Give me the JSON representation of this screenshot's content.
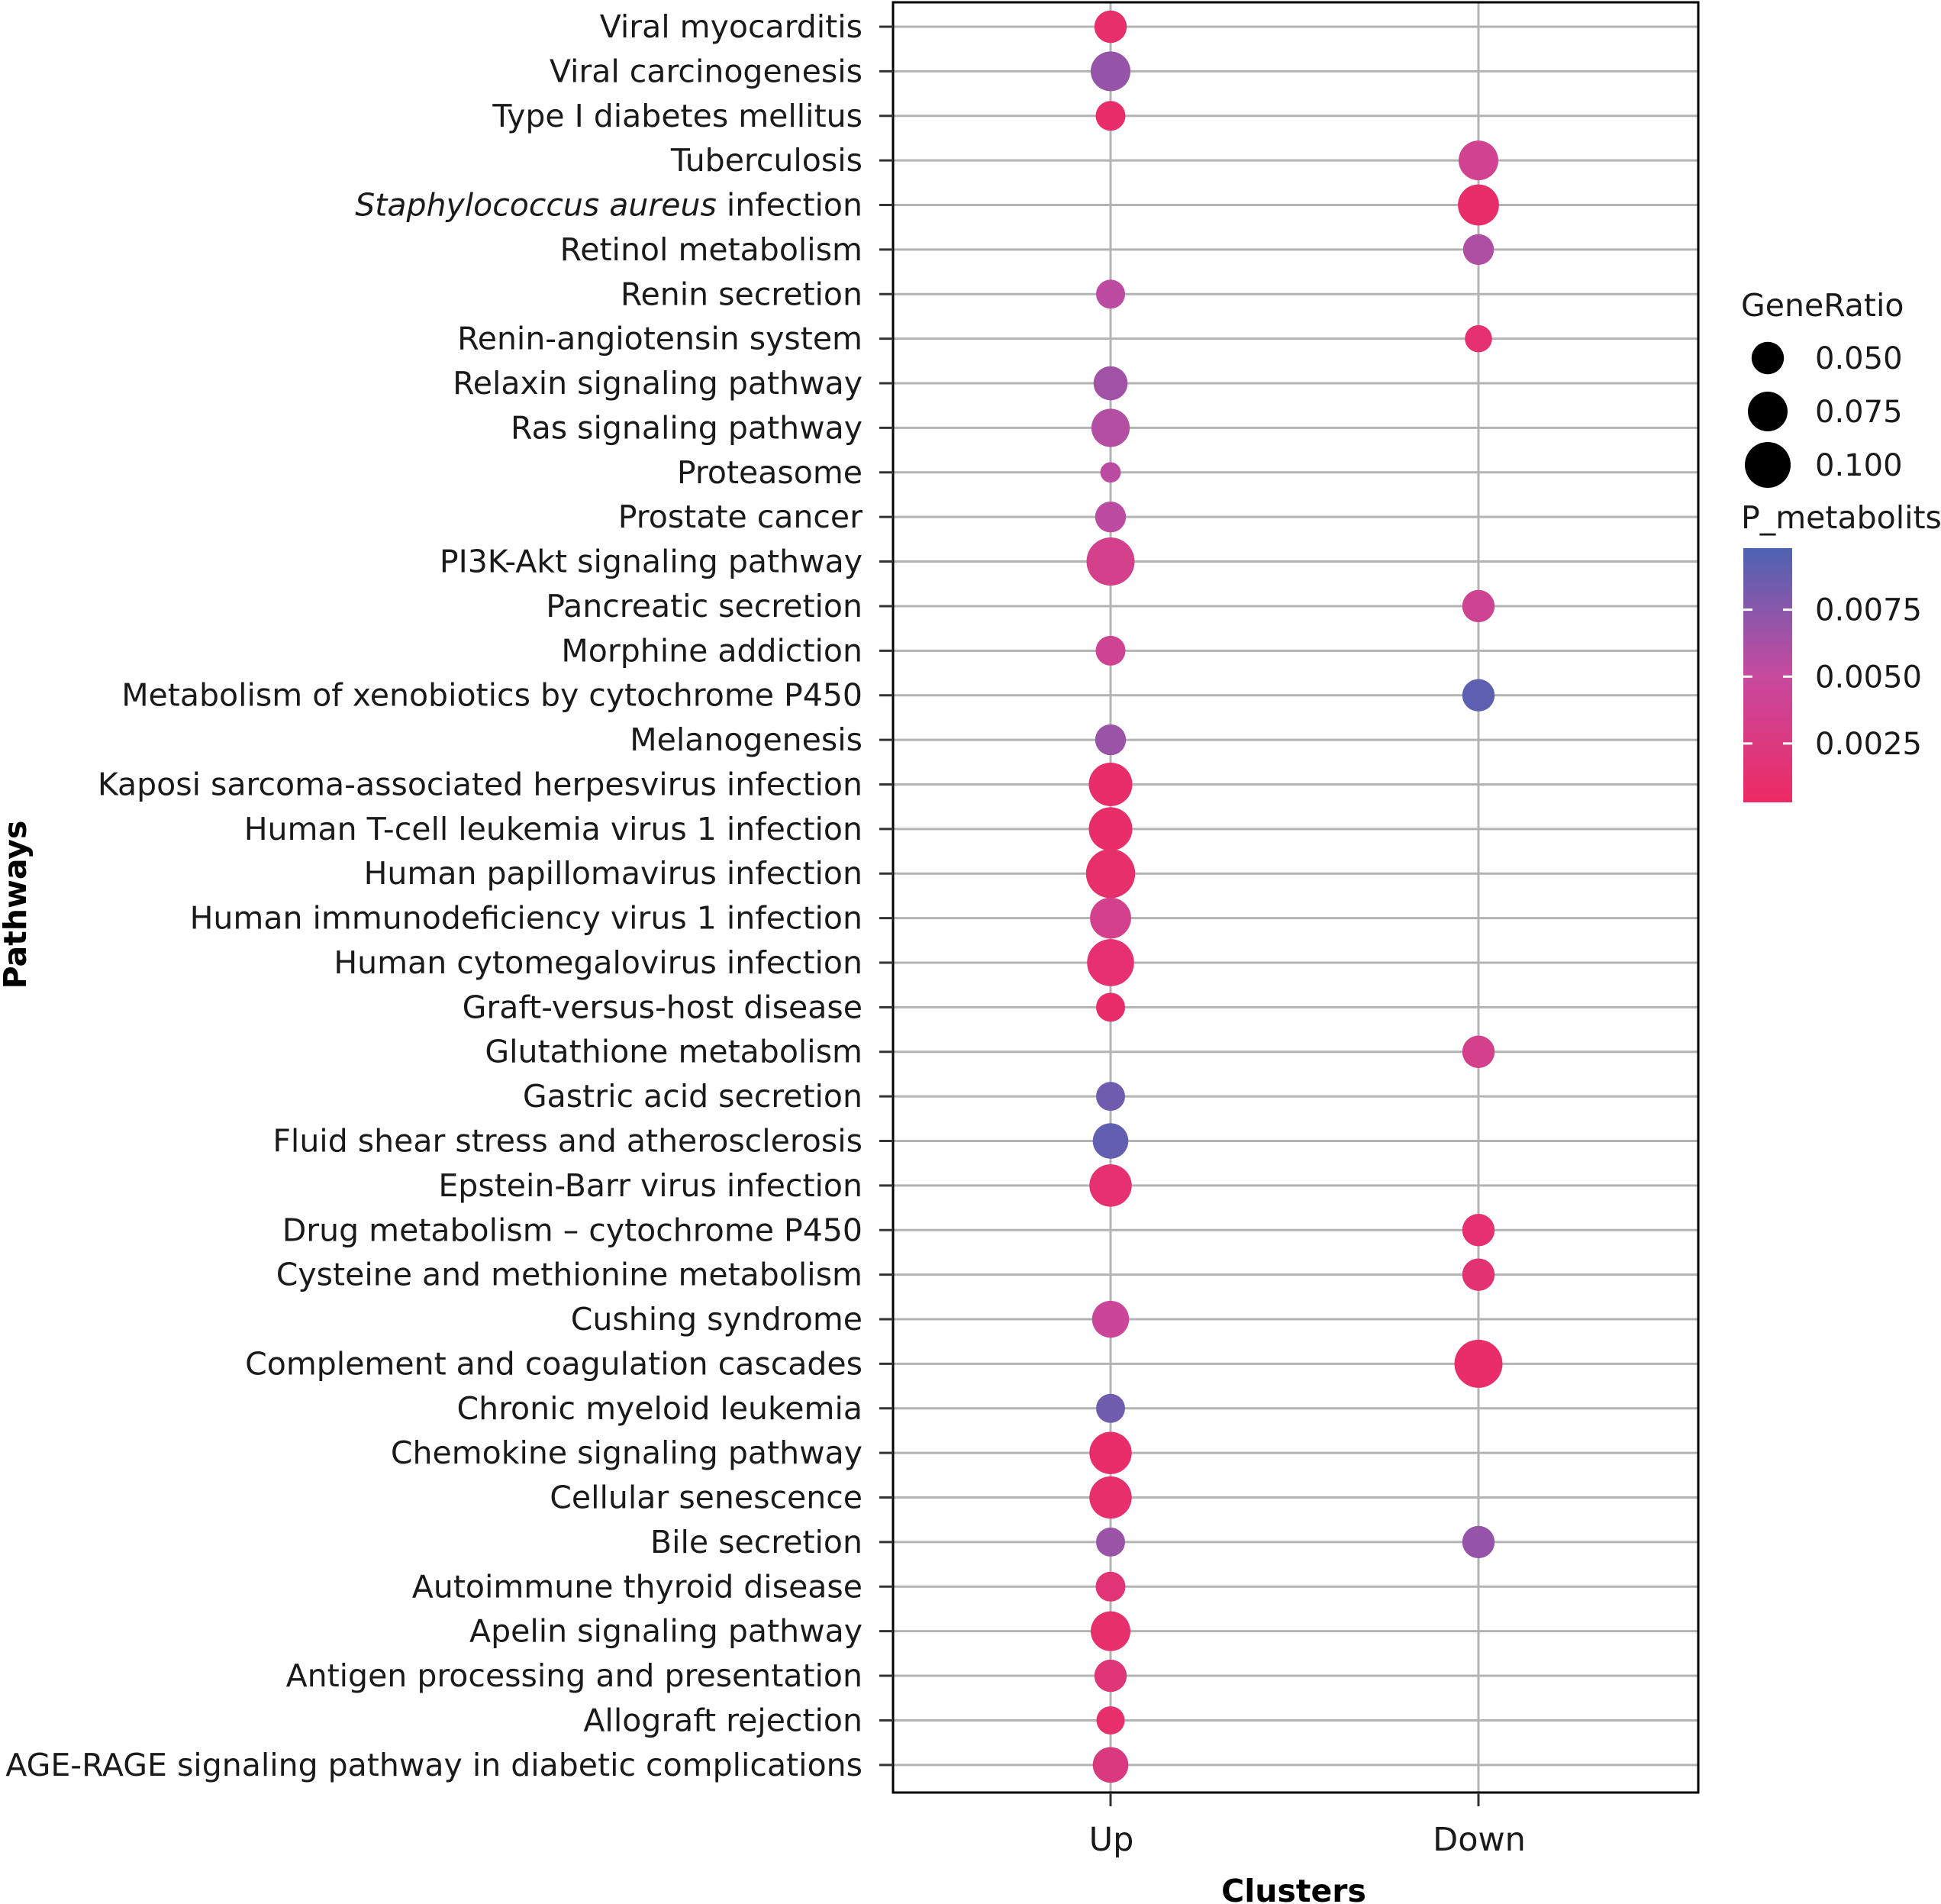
{
  "chart_data": {
    "type": "scatter",
    "xlabel": "Clusters",
    "ylabel": "Pathways",
    "categories_x": [
      "Up",
      "Down"
    ],
    "categories_y": [
      "Viral myocarditis",
      "Viral carcinogenesis",
      "Type I diabetes mellitus",
      "Tuberculosis",
      "Staphylococcus aureus infection",
      "Retinol metabolism",
      "Renin secretion",
      "Renin-angiotensin system",
      "Relaxin signaling pathway",
      "Ras signaling pathway",
      "Proteasome",
      "Prostate cancer",
      "PI3K-Akt signaling pathway",
      "Pancreatic secretion",
      "Morphine addiction",
      "Metabolism of xenobiotics by cytochrome P450",
      "Melanogenesis",
      "Kaposi sarcoma-associated herpesvirus infection",
      "Human T-cell leukemia virus 1 infection",
      "Human papillomavirus infection",
      "Human immunodeficiency virus 1 infection",
      "Human cytomegalovirus infection",
      "Graft-versus-host disease",
      "Glutathione metabolism",
      "Gastric acid secretion",
      "Fluid shear stress and atherosclerosis",
      "Epstein-Barr virus infection",
      "Drug metabolism – cytochrome P450",
      "Cysteine and methionine metabolism",
      "Cushing syndrome",
      "Complement and coagulation cascades",
      "Chronic myeloid leukemia",
      "Chemokine signaling pathway",
      "Cellular senescence",
      "Bile secretion",
      "Autoimmune thyroid disease",
      "Apelin signaling pathway",
      "Antigen processing and presentation",
      "Allograft rejection",
      "AGE-RAGE signaling pathway in diabetic complications"
    ],
    "italic_label": {
      "index": 4,
      "italic": "Staphylococcus aureus",
      "rest": " infection"
    },
    "points": [
      {
        "pathway": "Viral myocarditis",
        "cluster": "Up",
        "gene_ratio": 0.05,
        "p": 0.001
      },
      {
        "pathway": "Viral carcinogenesis",
        "cluster": "Up",
        "gene_ratio": 0.075,
        "p": 0.007
      },
      {
        "pathway": "Type I diabetes mellitus",
        "cluster": "Up",
        "gene_ratio": 0.042,
        "p": 0.0008
      },
      {
        "pathway": "Tuberculosis",
        "cluster": "Down",
        "gene_ratio": 0.075,
        "p": 0.0038
      },
      {
        "pathway": "Staphylococcus aureus infection",
        "cluster": "Down",
        "gene_ratio": 0.08,
        "p": 0.0008
      },
      {
        "pathway": "Retinol metabolism",
        "cluster": "Down",
        "gene_ratio": 0.045,
        "p": 0.006
      },
      {
        "pathway": "Renin secretion",
        "cluster": "Up",
        "gene_ratio": 0.04,
        "p": 0.0055
      },
      {
        "pathway": "Renin-angiotensin system",
        "cluster": "Down",
        "gene_ratio": 0.035,
        "p": 0.0012
      },
      {
        "pathway": "Relaxin signaling pathway",
        "cluster": "Up",
        "gene_ratio": 0.055,
        "p": 0.0065
      },
      {
        "pathway": "Ras signaling pathway",
        "cluster": "Up",
        "gene_ratio": 0.07,
        "p": 0.0058
      },
      {
        "pathway": "Proteasome",
        "cluster": "Up",
        "gene_ratio": 0.02,
        "p": 0.0055
      },
      {
        "pathway": "Prostate cancer",
        "cluster": "Up",
        "gene_ratio": 0.045,
        "p": 0.0055
      },
      {
        "pathway": "PI3K-Akt signaling pathway",
        "cluster": "Up",
        "gene_ratio": 0.11,
        "p": 0.0035
      },
      {
        "pathway": "Pancreatic secretion",
        "cluster": "Down",
        "gene_ratio": 0.05,
        "p": 0.004
      },
      {
        "pathway": "Morphine addiction",
        "cluster": "Up",
        "gene_ratio": 0.042,
        "p": 0.004
      },
      {
        "pathway": "Metabolism of xenobiotics by cytochrome P450",
        "cluster": "Down",
        "gene_ratio": 0.05,
        "p": 0.0092
      },
      {
        "pathway": "Melanogenesis",
        "cluster": "Up",
        "gene_ratio": 0.045,
        "p": 0.0068
      },
      {
        "pathway": "Kaposi sarcoma-associated herpesvirus infection",
        "cluster": "Up",
        "gene_ratio": 0.09,
        "p": 0.0008
      },
      {
        "pathway": "Human T-cell leukemia virus 1 infection",
        "cluster": "Up",
        "gene_ratio": 0.09,
        "p": 0.0008
      },
      {
        "pathway": "Human papillomavirus infection",
        "cluster": "Up",
        "gene_ratio": 0.115,
        "p": 0.001
      },
      {
        "pathway": "Human immunodeficiency virus 1 infection",
        "cluster": "Up",
        "gene_ratio": 0.08,
        "p": 0.0035
      },
      {
        "pathway": "Human cytomegalovirus infection",
        "cluster": "Up",
        "gene_ratio": 0.105,
        "p": 0.0012
      },
      {
        "pathway": "Graft-versus-host disease",
        "cluster": "Up",
        "gene_ratio": 0.04,
        "p": 0.0008
      },
      {
        "pathway": "Glutathione metabolism",
        "cluster": "Down",
        "gene_ratio": 0.05,
        "p": 0.0035
      },
      {
        "pathway": "Gastric acid secretion",
        "cluster": "Up",
        "gene_ratio": 0.04,
        "p": 0.0085
      },
      {
        "pathway": "Fluid shear stress and atherosclerosis",
        "cluster": "Up",
        "gene_ratio": 0.06,
        "p": 0.009
      },
      {
        "pathway": "Epstein-Barr virus infection",
        "cluster": "Up",
        "gene_ratio": 0.085,
        "p": 0.0012
      },
      {
        "pathway": "Drug metabolism – cytochrome P450",
        "cluster": "Down",
        "gene_ratio": 0.05,
        "p": 0.0012
      },
      {
        "pathway": "Cysteine and methionine metabolism",
        "cluster": "Down",
        "gene_ratio": 0.05,
        "p": 0.0015
      },
      {
        "pathway": "Cushing syndrome",
        "cluster": "Up",
        "gene_ratio": 0.065,
        "p": 0.0045
      },
      {
        "pathway": "Complement and coagulation cascades",
        "cluster": "Down",
        "gene_ratio": 0.11,
        "p": 0.0008
      },
      {
        "pathway": "Chronic myeloid leukemia",
        "cluster": "Up",
        "gene_ratio": 0.04,
        "p": 0.0085
      },
      {
        "pathway": "Chemokine signaling pathway",
        "cluster": "Up",
        "gene_ratio": 0.085,
        "p": 0.0008
      },
      {
        "pathway": "Cellular senescence",
        "cluster": "Up",
        "gene_ratio": 0.085,
        "p": 0.001
      },
      {
        "pathway": "Bile secretion",
        "cluster": "Up",
        "gene_ratio": 0.04,
        "p": 0.0068
      },
      {
        "pathway": "Bile secretion",
        "cluster": "Down",
        "gene_ratio": 0.05,
        "p": 0.007
      },
      {
        "pathway": "Autoimmune thyroid disease",
        "cluster": "Up",
        "gene_ratio": 0.042,
        "p": 0.0018
      },
      {
        "pathway": "Apelin signaling pathway",
        "cluster": "Up",
        "gene_ratio": 0.075,
        "p": 0.001
      },
      {
        "pathway": "Antigen processing and presentation",
        "cluster": "Up",
        "gene_ratio": 0.05,
        "p": 0.002
      },
      {
        "pathway": "Allograft rejection",
        "cluster": "Up",
        "gene_ratio": 0.038,
        "p": 0.001
      },
      {
        "pathway": "AGE-RAGE signaling pathway in diabetic complications",
        "cluster": "Up",
        "gene_ratio": 0.06,
        "p": 0.0025
      }
    ],
    "size_legend": {
      "title": "GeneRatio",
      "values": [
        0.05,
        0.075,
        0.1
      ],
      "labels": [
        "0.050",
        "0.075",
        "0.100"
      ]
    },
    "color_legend": {
      "title": "P_metabolits",
      "domain": [
        0.0003,
        0.0098
      ],
      "ticks": [
        0.0075,
        0.005,
        0.0025
      ],
      "labels": [
        "0.0075",
        "0.0050",
        "0.0025"
      ],
      "low_color": "#ED2A63",
      "mid_color": "#C74AA0",
      "high_color": "#4E63B3"
    },
    "grid": true,
    "legend_position": "right"
  }
}
